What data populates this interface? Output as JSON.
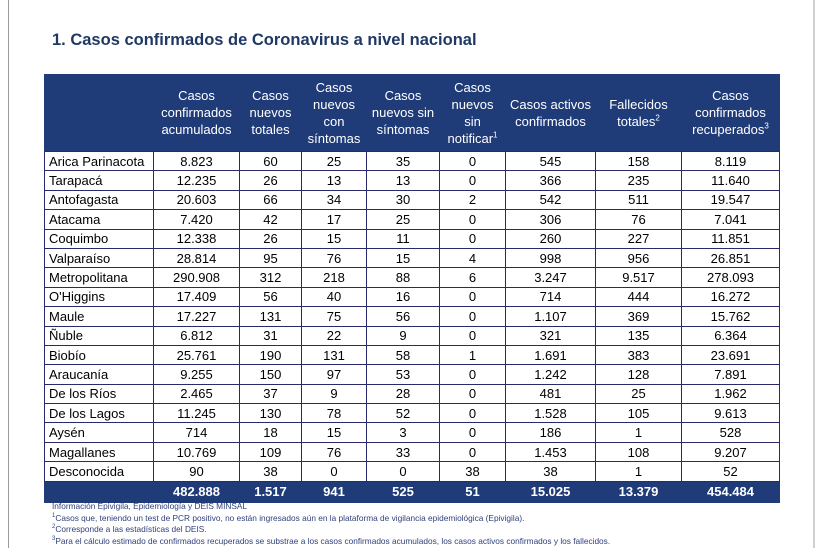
{
  "title": "1. Casos confirmados de Coronavirus a nivel nacional",
  "columns": [
    {
      "label": "Casos confirmados acumulados",
      "sup": ""
    },
    {
      "label": "Casos nuevos totales",
      "sup": ""
    },
    {
      "label": "Casos nuevos con síntomas",
      "sup": ""
    },
    {
      "label": "Casos nuevos sin síntomas",
      "sup": ""
    },
    {
      "label": "Casos nuevos sin notificar",
      "sup": "1"
    },
    {
      "label": "Casos activos confirmados",
      "sup": ""
    },
    {
      "label": "Fallecidos totales",
      "sup": "2"
    },
    {
      "label": "Casos confirmados recuperados",
      "sup": "3"
    }
  ],
  "rows": [
    {
      "region": "Arica Parinacota",
      "values": [
        "8.823",
        "60",
        "25",
        "35",
        "0",
        "545",
        "158",
        "8.119"
      ]
    },
    {
      "region": "Tarapacá",
      "values": [
        "12.235",
        "26",
        "13",
        "13",
        "0",
        "366",
        "235",
        "11.640"
      ]
    },
    {
      "region": "Antofagasta",
      "values": [
        "20.603",
        "66",
        "34",
        "30",
        "2",
        "542",
        "511",
        "19.547"
      ]
    },
    {
      "region": "Atacama",
      "values": [
        "7.420",
        "42",
        "17",
        "25",
        "0",
        "306",
        "76",
        "7.041"
      ]
    },
    {
      "region": "Coquimbo",
      "values": [
        "12.338",
        "26",
        "15",
        "11",
        "0",
        "260",
        "227",
        "11.851"
      ]
    },
    {
      "region": "Valparaíso",
      "values": [
        "28.814",
        "95",
        "76",
        "15",
        "4",
        "998",
        "956",
        "26.851"
      ]
    },
    {
      "region": "Metropolitana",
      "values": [
        "290.908",
        "312",
        "218",
        "88",
        "6",
        "3.247",
        "9.517",
        "278.093"
      ]
    },
    {
      "region": "O'Higgins",
      "values": [
        "17.409",
        "56",
        "40",
        "16",
        "0",
        "714",
        "444",
        "16.272"
      ]
    },
    {
      "region": "Maule",
      "values": [
        "17.227",
        "131",
        "75",
        "56",
        "0",
        "1.107",
        "369",
        "15.762"
      ]
    },
    {
      "region": "Ñuble",
      "values": [
        "6.812",
        "31",
        "22",
        "9",
        "0",
        "321",
        "135",
        "6.364"
      ]
    },
    {
      "region": "Biobío",
      "values": [
        "25.761",
        "190",
        "131",
        "58",
        "1",
        "1.691",
        "383",
        "23.691"
      ]
    },
    {
      "region": "Araucanía",
      "values": [
        "9.255",
        "150",
        "97",
        "53",
        "0",
        "1.242",
        "128",
        "7.891"
      ]
    },
    {
      "region": "De los Ríos",
      "values": [
        "2.465",
        "37",
        "9",
        "28",
        "0",
        "481",
        "25",
        "1.962"
      ]
    },
    {
      "region": "De los Lagos",
      "values": [
        "11.245",
        "130",
        "78",
        "52",
        "0",
        "1.528",
        "105",
        "9.613"
      ]
    },
    {
      "region": "Aysén",
      "values": [
        "714",
        "18",
        "15",
        "3",
        "0",
        "186",
        "1",
        "528"
      ]
    },
    {
      "region": "Magallanes",
      "values": [
        "10.769",
        "109",
        "76",
        "33",
        "0",
        "1.453",
        "108",
        "9.207"
      ]
    },
    {
      "region": "Desconocida",
      "values": [
        "90",
        "38",
        "0",
        "0",
        "38",
        "38",
        "1",
        "52"
      ]
    }
  ],
  "totals": [
    "482.888",
    "1.517",
    "941",
    "525",
    "51",
    "15.025",
    "13.379",
    "454.484"
  ],
  "notes": {
    "source": "Información Epivigila, Epidemiología y DEIS MINSAL",
    "note1": {
      "sup": "1",
      "text": "Casos que, teniendo un test de PCR positivo, no están ingresados aún en la plataforma de vigilancia epidemiológica (Epivigila)."
    },
    "note2": {
      "sup": "2",
      "text": "Corresponde a las estadísticas del DEIS."
    },
    "note3": {
      "sup": "3",
      "text": "Para el cálculo estimado de confirmados recuperados se substrae a los casos confirmados acumulados, los casos activos confirmados y los fallecidos."
    }
  }
}
